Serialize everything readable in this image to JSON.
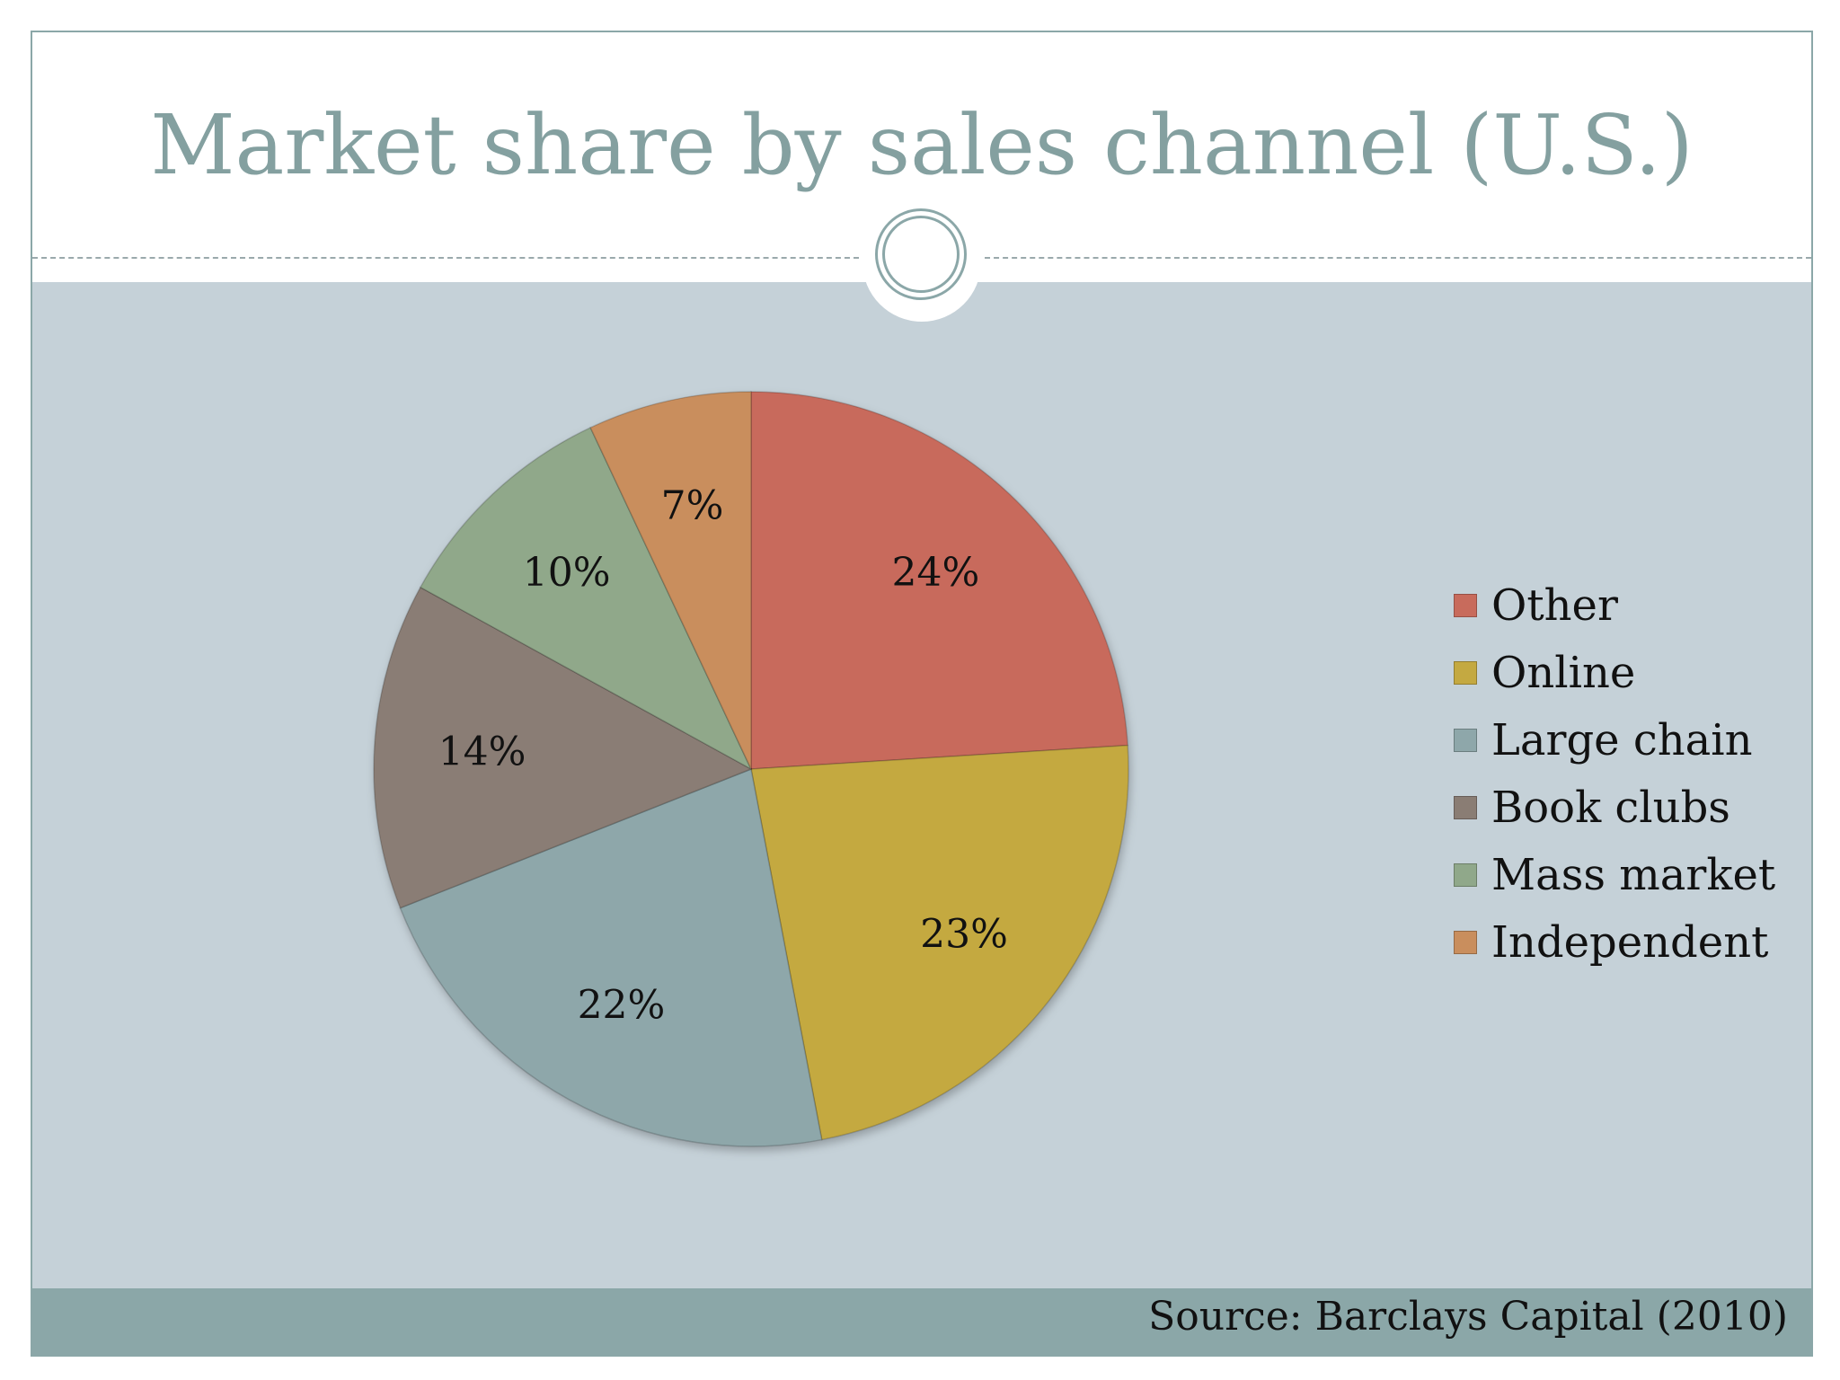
{
  "slide": {
    "source": "Source: Barclays Capital (2010)"
  },
  "chart_data": {
    "type": "pie",
    "title": "Market share by sales channel (U.S.)",
    "slices": [
      {
        "label": "Other",
        "value": 24,
        "display": "24%",
        "color": "#c86b5c"
      },
      {
        "label": "Online",
        "value": 23,
        "display": "23%",
        "color": "#c4a941"
      },
      {
        "label": "Large chain",
        "value": 22,
        "display": "22%",
        "color": "#8ea7aa"
      },
      {
        "label": "Book clubs",
        "value": 14,
        "display": "14%",
        "color": "#8a7d74"
      },
      {
        "label": "Mass market",
        "value": 10,
        "display": "10%",
        "color": "#90a88a"
      },
      {
        "label": "Independent",
        "value": 7,
        "display": "7%",
        "color": "#c98e5d"
      }
    ],
    "legend_position": "right",
    "start_angle": "12 o'clock",
    "direction": "clockwise"
  }
}
